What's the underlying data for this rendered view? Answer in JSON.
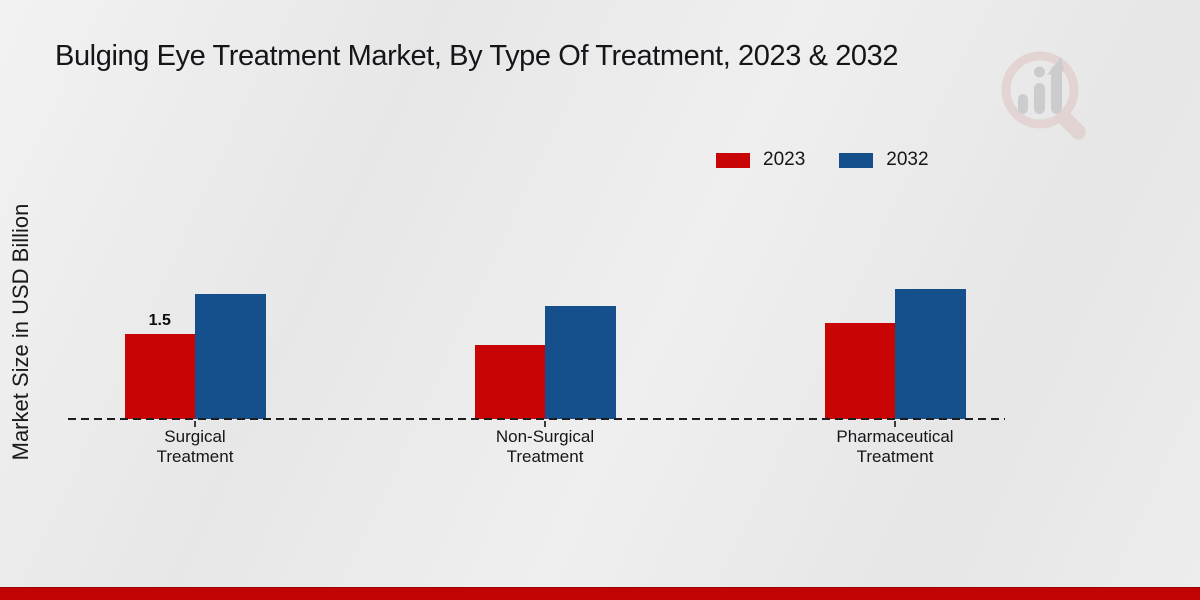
{
  "title": "Bulging Eye Treatment Market, By Type Of Treatment, 2023 & 2032",
  "y_axis_label": "Market Size in USD Billion",
  "watermark_icon": "magnifier-bar-chart-logo",
  "colors": {
    "series_2023": "#c80404",
    "series_2032": "#15508c",
    "bottom_strip": "#c10303",
    "background": "#e9e9e9",
    "text": "#141619"
  },
  "chart_data": {
    "type": "bar",
    "title": "Bulging Eye Treatment Market, By Type Of Treatment, 2023 & 2032",
    "xlabel": "",
    "ylabel": "Market Size in USD Billion",
    "categories": [
      "Surgical Treatment",
      "Non-Surgical Treatment",
      "Pharmaceutical Treatment"
    ],
    "category_label_lines": [
      [
        "Surgical",
        "Treatment"
      ],
      [
        "Non-Surgical",
        "Treatment"
      ],
      [
        "Pharmaceutical",
        "Treatment"
      ]
    ],
    "series": [
      {
        "name": "2023",
        "color": "#c80404",
        "values": [
          1.5,
          1.3,
          1.7
        ]
      },
      {
        "name": "2032",
        "color": "#15508c",
        "values": [
          2.2,
          2.0,
          2.3
        ]
      }
    ],
    "value_labels": [
      {
        "series_index": 0,
        "category_index": 0,
        "text": "1.5"
      }
    ],
    "ylim": [
      0,
      2.5
    ],
    "grid": false,
    "legend_position": "top-right",
    "x_axis_style": "dashed",
    "y_axis_ticks_visible": false
  }
}
